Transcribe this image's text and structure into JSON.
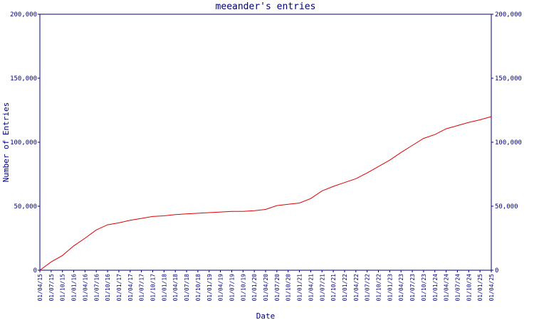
{
  "chart_data": {
    "type": "line",
    "title": "meeander's entries",
    "xlabel": "Date",
    "ylabel": "Number of Entries",
    "ylim": [
      0,
      200000
    ],
    "y_ticks": [
      {
        "value": 0,
        "label": "0"
      },
      {
        "value": 50000,
        "label": "50,000"
      },
      {
        "value": 100000,
        "label": "100,000"
      },
      {
        "value": 150000,
        "label": "150,000"
      },
      {
        "value": 200000,
        "label": "200,000"
      }
    ],
    "x_tick_labels": [
      "01/04/15",
      "01/07/15",
      "01/10/15",
      "01/01/16",
      "01/04/16",
      "01/07/16",
      "01/10/16",
      "01/01/17",
      "01/04/17",
      "01/07/17",
      "01/10/17",
      "01/01/18",
      "01/04/18",
      "01/07/18",
      "01/10/18",
      "01/01/19",
      "01/04/19",
      "01/07/19",
      "01/10/19",
      "01/01/20",
      "01/04/20",
      "01/07/20",
      "01/10/20",
      "01/01/21",
      "01/04/21",
      "01/07/21",
      "01/10/21",
      "01/01/22",
      "01/04/22",
      "01/07/22",
      "01/10/22",
      "01/01/23",
      "01/04/23",
      "01/07/23",
      "01/10/23",
      "01/01/24",
      "01/04/24",
      "01/07/24",
      "01/10/24",
      "01/01/25",
      "01/04/25"
    ],
    "x": [
      "01/04/15",
      "01/07/15",
      "01/10/15",
      "01/01/16",
      "01/04/16",
      "01/07/16",
      "01/10/16",
      "01/01/17",
      "01/04/17",
      "01/07/17",
      "01/10/17",
      "01/01/18",
      "01/04/18",
      "01/07/18",
      "01/10/18",
      "01/01/19",
      "01/04/19",
      "01/07/19",
      "01/10/19",
      "01/01/20",
      "01/04/20",
      "01/07/20",
      "01/10/20",
      "01/01/21",
      "01/04/21",
      "01/07/21",
      "01/10/21",
      "01/01/22",
      "01/04/22",
      "01/07/22",
      "01/10/22",
      "01/01/23",
      "01/04/23",
      "01/07/23",
      "01/10/23",
      "01/01/24",
      "01/04/24",
      "01/07/24",
      "01/10/24",
      "01/01/25",
      "01/04/25"
    ],
    "series": [
      {
        "values": [
          0,
          6500,
          11500,
          19000,
          25000,
          31500,
          35500,
          37000,
          39000,
          40500,
          42000,
          42500,
          43500,
          44000,
          44500,
          45000,
          45500,
          46000,
          46000,
          46500,
          47500,
          50500,
          51500,
          52500,
          56000,
          62000,
          65500,
          68500,
          71500,
          76000,
          81000,
          86000,
          92000,
          97500,
          103000,
          106000,
          110500,
          113000,
          115500,
          117500,
          120000
        ],
        "color": "#e00000"
      }
    ],
    "grid": false,
    "colors": {
      "axis": "#00007a",
      "line": "#e00000",
      "background": "#ffffff"
    }
  }
}
